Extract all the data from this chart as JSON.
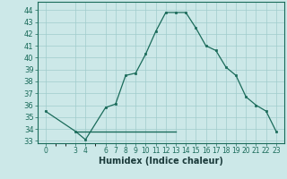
{
  "xlabel": "Humidex (Indice chaleur)",
  "bg_color": "#cce8e8",
  "line_color": "#1a6b5a",
  "marker_color": "#1a6b5a",
  "x_data": [
    0,
    3,
    4,
    6,
    7,
    8,
    9,
    10,
    11,
    12,
    13,
    14,
    15,
    16,
    17,
    18,
    19,
    20,
    21,
    22,
    23
  ],
  "y_data": [
    35.5,
    33.8,
    33.1,
    35.8,
    36.1,
    38.5,
    38.7,
    40.3,
    42.2,
    43.8,
    43.8,
    43.8,
    42.5,
    41.0,
    40.6,
    39.2,
    38.5,
    36.7,
    36.0,
    35.5,
    33.8
  ],
  "ref_line_x": [
    3,
    13
  ],
  "ref_line_y": [
    33.8,
    33.8
  ],
  "ylim": [
    32.8,
    44.7
  ],
  "xlim": [
    -0.8,
    23.8
  ],
  "yticks": [
    33,
    34,
    35,
    36,
    37,
    38,
    39,
    40,
    41,
    42,
    43,
    44
  ],
  "xticks": [
    0,
    3,
    4,
    6,
    7,
    8,
    9,
    10,
    11,
    12,
    13,
    14,
    15,
    16,
    17,
    18,
    19,
    20,
    21,
    22,
    23
  ],
  "xtick_labels": [
    "0",
    "3",
    "4",
    "6",
    "7",
    "8",
    "9",
    "10",
    "11",
    "12",
    "13",
    "14",
    "15",
    "16",
    "17",
    "18",
    "19",
    "20",
    "21",
    "22",
    "23"
  ],
  "grid_color": "#a0cccc",
  "tick_font_size": 6,
  "xlabel_font_size": 7
}
